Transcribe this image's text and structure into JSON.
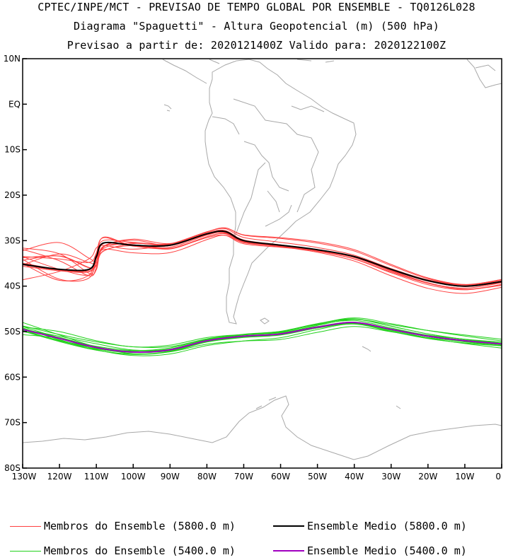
{
  "header": {
    "line1": "CPTEC/INPE/MCT - PREVISAO DE TEMPO GLOBAL POR ENSEMBLE - TQ0126L028",
    "line2": "Diagrama \"Spaguetti\" - Altura Geopotencial (m) (500 hPa)",
    "line3": "Previsao a partir de: 2020121400Z  Valido para: 2020122100Z"
  },
  "axes": {
    "lat_labels": [
      "10N",
      "EQ",
      "10S",
      "20S",
      "30S",
      "40S",
      "50S",
      "60S",
      "70S",
      "80S"
    ],
    "lon_labels": [
      "130W",
      "120W",
      "110W",
      "100W",
      "90W",
      "80W",
      "70W",
      "60W",
      "50W",
      "40W",
      "30W",
      "20W",
      "10W",
      "0"
    ]
  },
  "colors": {
    "members_5800": "#ff4040",
    "members_5400": "#22d11c",
    "mean_5800": "#000000",
    "mean_5400": "#a000c0",
    "coast": "#a8a8a8"
  },
  "legend": {
    "members_5800_label": "Membros do Ensemble (5800.0 m)",
    "mean_5800_label": "Ensemble Medio (5800.0 m)",
    "members_5400_label": "Membros do Ensemble (5400.0 m)",
    "mean_5400_label": "Ensemble Medio (5400.0 m)"
  },
  "contours": {
    "mean_5800": [
      [
        -130,
        -35.2
      ],
      [
        -120,
        -36.3
      ],
      [
        -112,
        -36.3
      ],
      [
        -110,
        -33.5
      ],
      [
        -108,
        -30.5
      ],
      [
        -100,
        -31
      ],
      [
        -90,
        -31
      ],
      [
        -80,
        -28.5
      ],
      [
        -75,
        -28
      ],
      [
        -70,
        -30
      ],
      [
        -60,
        -31
      ],
      [
        -50,
        -32
      ],
      [
        -40,
        -33.5
      ],
      [
        -30,
        -36.3
      ],
      [
        -20,
        -38.8
      ],
      [
        -10,
        -40
      ],
      [
        0,
        -39
      ]
    ],
    "mean_5400": [
      [
        -130,
        -49.5
      ],
      [
        -120,
        -51.5
      ],
      [
        -110,
        -53.5
      ],
      [
        -100,
        -54.5
      ],
      [
        -90,
        -54
      ],
      [
        -80,
        -52
      ],
      [
        -70,
        -51
      ],
      [
        -60,
        -50.5
      ],
      [
        -50,
        -49
      ],
      [
        -40,
        -48
      ],
      [
        -30,
        -49.5
      ],
      [
        -20,
        -51
      ],
      [
        -10,
        -52
      ],
      [
        0,
        -52.7
      ]
    ]
  }
}
